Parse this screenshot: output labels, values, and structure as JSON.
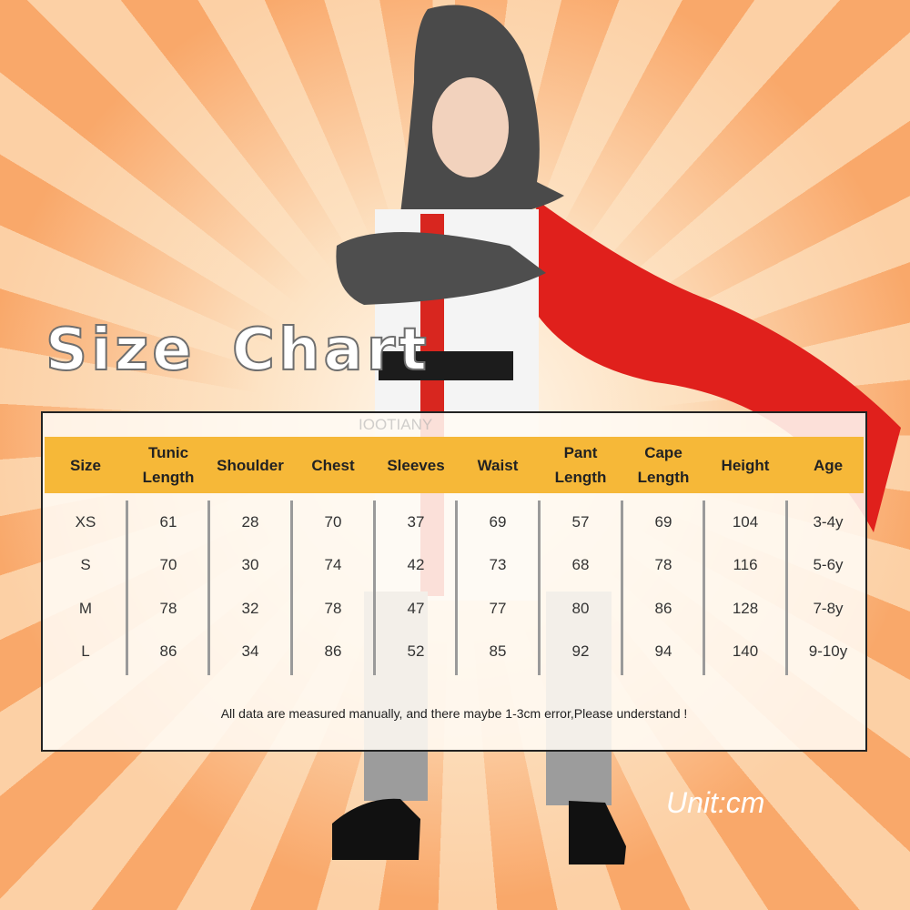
{
  "title": "Size Chart",
  "watermark": "IOOTIANY",
  "unit_label": "Unit:cm",
  "note": "All data are measured manually, and there maybe 1-3cm error,Please understand !",
  "colors": {
    "header_band": "#f6b838",
    "background": "#f9a86a",
    "cape": "#e0201c"
  },
  "chart_data": {
    "type": "table",
    "columns": [
      "Size",
      "Tunic Length",
      "Shoulder",
      "Chest",
      "Sleeves",
      "Waist",
      "Pant Length",
      "Cape Length",
      "Height",
      "Age"
    ],
    "rows": [
      [
        "XS",
        "61",
        "28",
        "70",
        "37",
        "69",
        "57",
        "69",
        "104",
        "3-4y"
      ],
      [
        "S",
        "70",
        "30",
        "74",
        "42",
        "73",
        "68",
        "78",
        "116",
        "5-6y"
      ],
      [
        "M",
        "78",
        "32",
        "78",
        "47",
        "77",
        "80",
        "86",
        "128",
        "7-8y"
      ],
      [
        "L",
        "86",
        "34",
        "86",
        "52",
        "85",
        "92",
        "94",
        "140",
        "9-10y"
      ]
    ]
  }
}
